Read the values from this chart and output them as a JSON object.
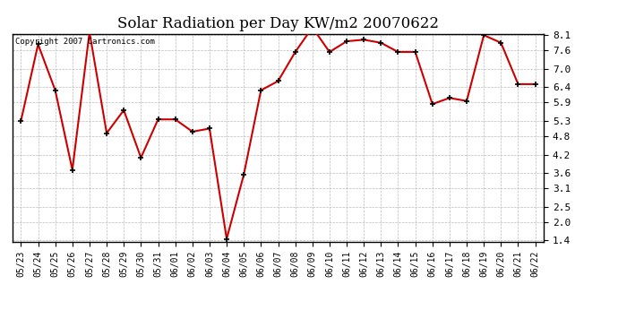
{
  "title": "Solar Radiation per Day KW/m2 20070622",
  "copyright": "Copyright 2007 Cartronics.com",
  "dates": [
    "05/23",
    "05/24",
    "05/25",
    "05/26",
    "05/27",
    "05/28",
    "05/29",
    "05/30",
    "05/31",
    "06/01",
    "06/02",
    "06/03",
    "06/04",
    "06/05",
    "06/06",
    "06/07",
    "06/08",
    "06/09",
    "06/10",
    "06/11",
    "06/12",
    "06/13",
    "06/14",
    "06/15",
    "06/16",
    "06/17",
    "06/18",
    "06/19",
    "06/20",
    "06/21",
    "06/22"
  ],
  "values": [
    5.3,
    7.8,
    6.3,
    3.7,
    8.2,
    4.9,
    5.65,
    4.1,
    5.35,
    5.35,
    4.95,
    5.05,
    1.45,
    3.55,
    6.3,
    6.6,
    7.55,
    8.35,
    7.55,
    7.9,
    7.95,
    7.85,
    7.55,
    7.55,
    5.85,
    6.05,
    5.95,
    8.1,
    7.85,
    6.5,
    6.5
  ],
  "line_color": "#cc0000",
  "marker_color": "#000000",
  "bg_color": "#ffffff",
  "grid_color": "#bbbbbb",
  "yticks": [
    1.4,
    2.0,
    2.5,
    3.1,
    3.6,
    4.2,
    4.8,
    5.3,
    5.9,
    6.4,
    7.0,
    7.6,
    8.1
  ],
  "ylim": [
    1.4,
    8.1
  ],
  "title_fontsize": 12,
  "tick_fontsize": 7,
  "ytick_fontsize": 8
}
